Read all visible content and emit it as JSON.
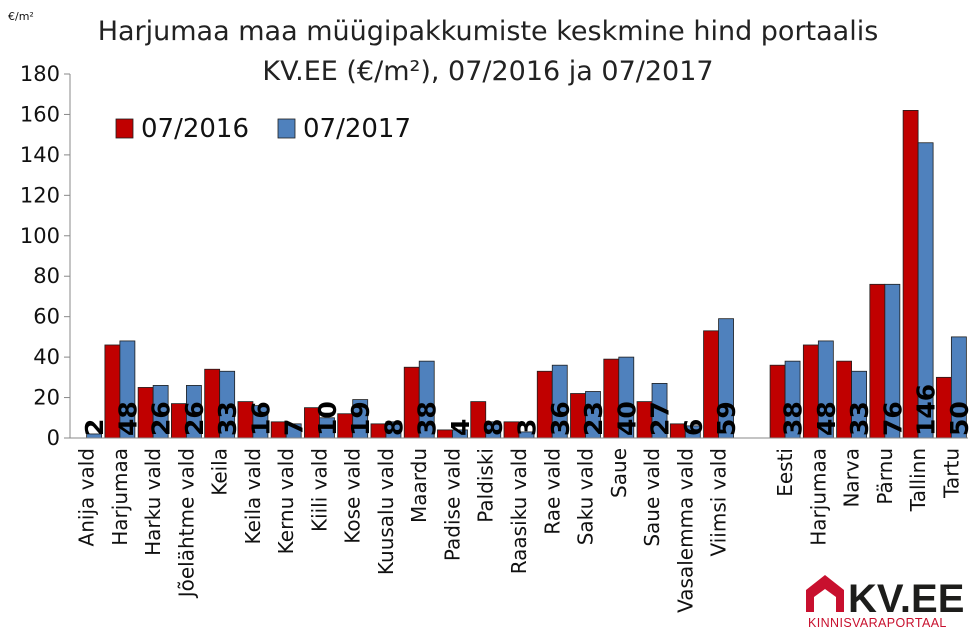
{
  "chart_data": {
    "type": "bar",
    "title": [
      "Harjumaa maa müügipakkumiste keskmine hind portaalis",
      "KV.EE (€/m²), 07/2016 ja 07/2017"
    ],
    "unit_label": "€/m²",
    "ylim": [
      0,
      180
    ],
    "yticks": [
      0,
      20,
      40,
      60,
      80,
      100,
      120,
      140,
      160,
      180
    ],
    "grid": false,
    "legend_position": "top-left",
    "categories": [
      "Anija vald",
      "Harjumaa",
      "Harku vald",
      "Jõelähtme vald",
      "Keila",
      "Keila vald",
      "Kernu vald",
      "Kiili vald",
      "Kose vald",
      "Kuusalu vald",
      "Maardu",
      "Padise vald",
      "Paldiski",
      "Raasiku vald",
      "Rae vald",
      "Saku vald",
      "Saue",
      "Saue vald",
      "Vasalemma vald",
      "Viimsi vald",
      "",
      "Eesti",
      "Harjumaa",
      "Narva",
      "Pärnu",
      "Tallinn",
      "Tartu"
    ],
    "series": [
      {
        "name": "07/2016",
        "color": "#c00000",
        "values": [
          0,
          46,
          25,
          17,
          34,
          18,
          8,
          15,
          12,
          7,
          35,
          4,
          18,
          8,
          33,
          22,
          39,
          18,
          7,
          53,
          null,
          36,
          46,
          38,
          76,
          162,
          30
        ]
      },
      {
        "name": "07/2017",
        "color": "#4f81bd",
        "values": [
          2,
          48,
          26,
          26,
          33,
          16,
          7,
          10,
          19,
          8,
          38,
          4,
          8,
          3,
          36,
          23,
          40,
          27,
          6,
          59,
          null,
          38,
          48,
          33,
          76,
          146,
          50
        ]
      }
    ],
    "data_labels": [
      "2",
      "48",
      "26",
      "26",
      "33",
      "16",
      "7",
      "10",
      "19",
      "8",
      "38",
      "4",
      "8",
      "3",
      "36",
      "23",
      "40",
      "27",
      "6",
      "59",
      "",
      "38",
      "48",
      "33",
      "76",
      "146",
      "50"
    ]
  },
  "logo": {
    "brand": "KV.EE",
    "tagline": "KINNISVARAPORTAAL",
    "color_red": "#c8102e",
    "color_dark": "#1d1d1b"
  }
}
